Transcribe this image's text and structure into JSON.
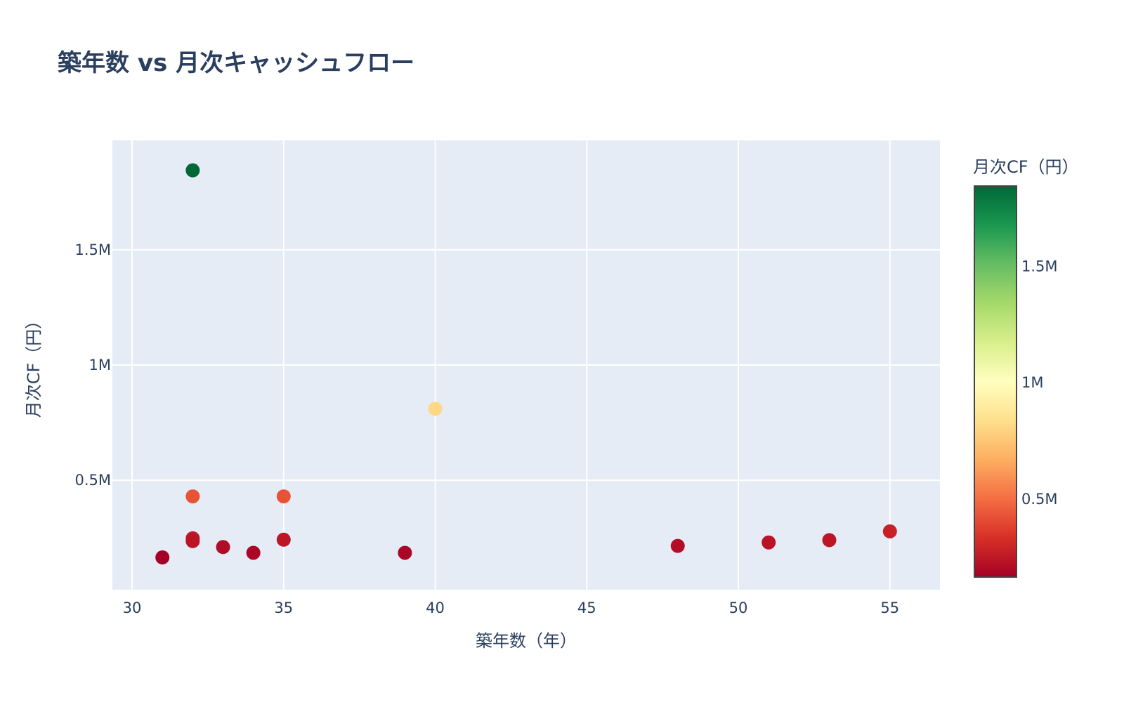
{
  "title": "築年数 vs 月次キャッシュフロー",
  "chart_data": {
    "type": "scatter",
    "title": "築年数 vs 月次キャッシュフロー",
    "xlabel": "築年数（年）",
    "ylabel": "月次CF（円）",
    "xlim": [
      29.35,
      56.65
    ],
    "ylim": [
      25000,
      1975000
    ],
    "x_ticks": [
      30,
      35,
      40,
      45,
      50,
      55
    ],
    "x_tick_labels": [
      "30",
      "35",
      "40",
      "45",
      "50",
      "55"
    ],
    "y_ticks": [
      500000,
      1000000,
      1500000
    ],
    "y_tick_labels": [
      "0.5M",
      "1M",
      "1.5M"
    ],
    "grid": true,
    "points": [
      {
        "x": 31,
        "y": 165000
      },
      {
        "x": 32,
        "y": 1845000
      },
      {
        "x": 32,
        "y": 430000
      },
      {
        "x": 32,
        "y": 248000
      },
      {
        "x": 32,
        "y": 236000
      },
      {
        "x": 33,
        "y": 210000
      },
      {
        "x": 34,
        "y": 185000
      },
      {
        "x": 35,
        "y": 430000
      },
      {
        "x": 35,
        "y": 242000
      },
      {
        "x": 39,
        "y": 185000
      },
      {
        "x": 40,
        "y": 810000
      },
      {
        "x": 48,
        "y": 215000
      },
      {
        "x": 51,
        "y": 230000
      },
      {
        "x": 53,
        "y": 240000
      },
      {
        "x": 55,
        "y": 278000
      }
    ],
    "colorbar": {
      "title": "月次CF（円）",
      "colorscale": "RdYlGn",
      "cmin": 165000,
      "cmax": 1845000,
      "ticks": [
        500000,
        1000000,
        1500000
      ],
      "tick_labels": [
        "0.5M",
        "1M",
        "1.5M"
      ]
    }
  },
  "colors": {
    "plot_bg": "#e5ecf6",
    "grid": "#ffffff",
    "text": "#2a3f5f",
    "colorscale_stops": [
      "#a50026",
      "#d73027",
      "#f46d43",
      "#fdae61",
      "#fee08b",
      "#ffffbf",
      "#d9ef8b",
      "#a6d96a",
      "#66bd63",
      "#1a9850",
      "#006837"
    ]
  }
}
